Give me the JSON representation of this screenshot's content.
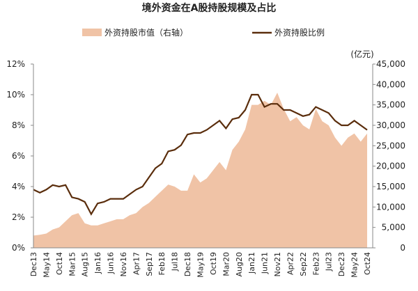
{
  "chart_data": {
    "type": "dual-axis-area-line",
    "title": "境外资金在A股持股规模及占比",
    "y2_unit": "(亿元)",
    "categories": [
      "Dec13",
      null,
      "May14",
      null,
      "Oct14",
      null,
      "Mar15",
      null,
      "Aug15",
      null,
      "Jan16",
      null,
      "Jun16",
      null,
      "Nov16",
      null,
      "Apr17",
      null,
      "Sep17",
      null,
      "Feb18",
      null,
      "Jul18",
      null,
      "Dec18",
      null,
      "May19",
      null,
      "Oct19",
      null,
      "Mar20",
      null,
      "Aug20",
      null,
      "Jan21",
      null,
      "Jun21",
      null,
      "Nov21",
      null,
      "Apr22",
      null,
      "Sep22",
      null,
      "Feb23",
      null,
      "Jul23",
      null,
      "Dec23",
      null,
      "May24",
      null,
      "Oct24"
    ],
    "series": [
      {
        "name": "外资持股市值（右轴）",
        "type": "area",
        "axis": "y2",
        "color": "#f0c3a6",
        "values": [
          3000,
          3200,
          3500,
          4500,
          5000,
          6500,
          8000,
          8500,
          6000,
          5500,
          5500,
          6000,
          6500,
          7000,
          7000,
          8000,
          8500,
          10000,
          11000,
          12500,
          14000,
          15500,
          15000,
          14000,
          14000,
          18000,
          16000,
          17000,
          19000,
          21000,
          19000,
          24000,
          26000,
          29000,
          35000,
          35000,
          36000,
          35000,
          38000,
          34000,
          31000,
          32000,
          30000,
          29000,
          34000,
          31000,
          30000,
          27000,
          25000,
          27000,
          28000,
          26000,
          28000
        ]
      },
      {
        "name": "外资持股比例",
        "type": "line",
        "axis": "y",
        "color": "#5a2d0c",
        "values": [
          3.8,
          3.6,
          3.8,
          4.1,
          4.0,
          4.1,
          3.3,
          3.2,
          3.0,
          2.2,
          2.9,
          3.0,
          3.2,
          3.2,
          3.2,
          3.5,
          3.8,
          4.0,
          4.6,
          5.2,
          5.5,
          6.3,
          6.4,
          6.7,
          7.4,
          7.5,
          7.5,
          7.7,
          8.0,
          8.3,
          7.8,
          8.4,
          8.5,
          9.0,
          10.0,
          10.0,
          9.2,
          9.4,
          9.4,
          9.0,
          9.0,
          8.8,
          8.6,
          8.7,
          9.2,
          9.0,
          8.8,
          8.3,
          8.0,
          8.0,
          8.3,
          8.0,
          7.7
        ]
      }
    ],
    "ylim": [
      0,
      12
    ],
    "yticks": [
      {
        "value": 0,
        "label": "0%"
      },
      {
        "value": 2,
        "label": "2%"
      },
      {
        "value": 4,
        "label": "4%"
      },
      {
        "value": 6,
        "label": "6%"
      },
      {
        "value": 8,
        "label": "8%"
      },
      {
        "value": 10,
        "label": "10%"
      },
      {
        "value": 12,
        "label": "12%"
      }
    ],
    "y2lim": [
      0,
      45000
    ],
    "y2ticks": [
      0,
      {
        "value": 5000,
        "label": "5,000"
      },
      {
        "value": 10000,
        "label": "10,000"
      },
      {
        "value": 15000,
        "label": "15,000"
      },
      {
        "value": 20000,
        "label": "20,000"
      },
      {
        "value": 25000,
        "label": "25,000"
      },
      {
        "value": 30000,
        "label": "30,000"
      },
      {
        "value": 35000,
        "label": "35,000"
      },
      {
        "value": 40000,
        "label": "40,000"
      },
      {
        "value": 45000,
        "label": "45,000"
      }
    ]
  }
}
